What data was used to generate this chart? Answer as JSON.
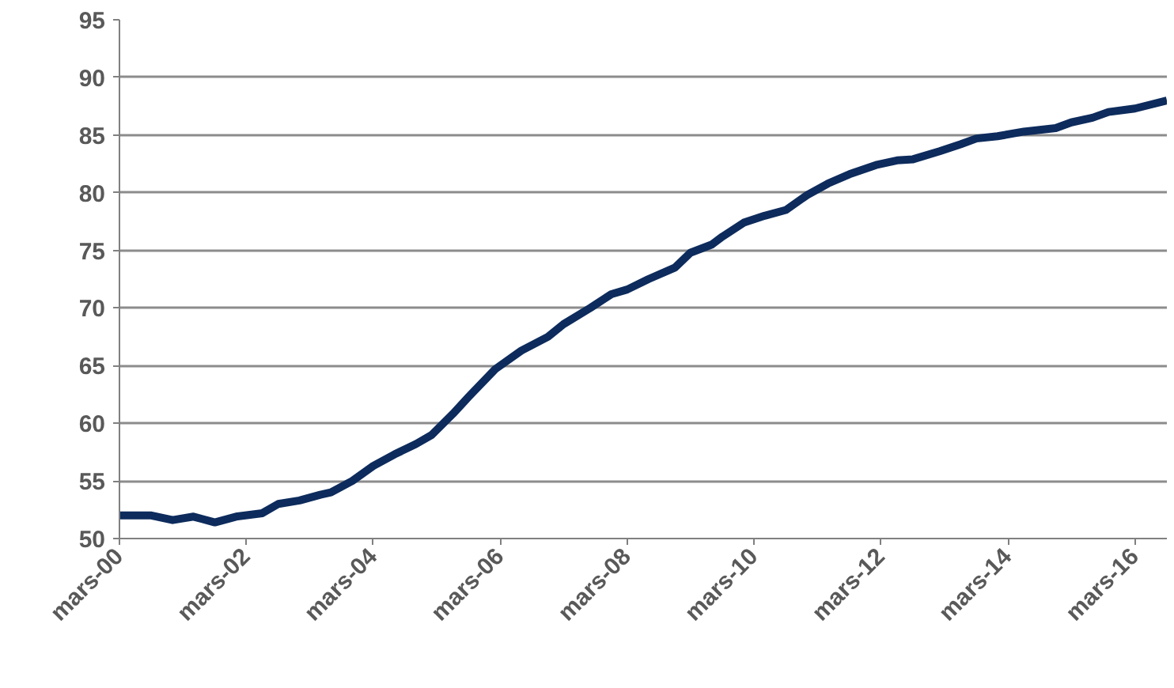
{
  "chart_data": {
    "type": "line",
    "x": [
      "2000-03",
      "2000-09",
      "2001-01",
      "2001-05",
      "2001-09",
      "2002-01",
      "2002-06",
      "2002-09",
      "2003-01",
      "2003-05",
      "2003-07",
      "2003-11",
      "2004-03",
      "2004-07",
      "2004-11",
      "2005-02",
      "2005-06",
      "2005-09",
      "2006-02",
      "2006-07",
      "2006-12",
      "2007-03",
      "2007-08",
      "2007-12",
      "2008-03",
      "2008-07",
      "2008-12",
      "2009-03",
      "2009-07",
      "2009-09",
      "2010-01",
      "2010-05",
      "2010-09",
      "2011-01",
      "2011-05",
      "2011-09",
      "2012-02",
      "2012-06",
      "2012-09",
      "2013-02",
      "2013-06",
      "2013-09",
      "2014-01",
      "2014-06",
      "2014-12",
      "2015-03",
      "2015-07",
      "2015-10",
      "2016-03",
      "2016-09"
    ],
    "series": [
      {
        "color": "#0d2b5c",
        "values": [
          52,
          52,
          51.6,
          51.9,
          51.4,
          51.9,
          52.2,
          53,
          53.3,
          53.8,
          54,
          55,
          56.3,
          57.3,
          58.2,
          59,
          60.8,
          62.3,
          64.7,
          66.3,
          67.5,
          68.6,
          70,
          71.2,
          71.6,
          72.5,
          73.5,
          74.8,
          75.5,
          76.2,
          77.4,
          78,
          78.5,
          79.8,
          80.8,
          81.6,
          82.4,
          82.8,
          82.9,
          83.6,
          84.2,
          84.7,
          84.9,
          85.3,
          85.6,
          86.1,
          86.5,
          87,
          87.3,
          88
        ]
      }
    ],
    "xlim": [
      "2000-03",
      "2016-09"
    ],
    "xticks": [
      {
        "value": "2000-03",
        "label": "mars-00"
      },
      {
        "value": "2002-03",
        "label": "mars-02"
      },
      {
        "value": "2004-03",
        "label": "mars-04"
      },
      {
        "value": "2006-03",
        "label": "mars-06"
      },
      {
        "value": "2008-03",
        "label": "mars-08"
      },
      {
        "value": "2010-03",
        "label": "mars-10"
      },
      {
        "value": "2012-03",
        "label": "mars-12"
      },
      {
        "value": "2014-03",
        "label": "mars-14"
      },
      {
        "value": "2016-03",
        "label": "mars-16"
      }
    ],
    "ylim": [
      50,
      95
    ],
    "yticks": [
      50,
      55,
      60,
      65,
      70,
      75,
      80,
      85,
      90,
      95
    ],
    "grid": "y",
    "marker": "none",
    "line_style": "solid"
  }
}
